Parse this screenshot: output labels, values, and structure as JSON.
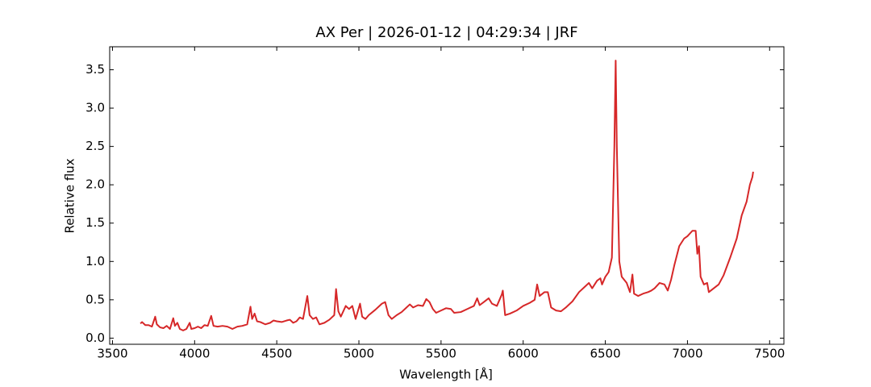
{
  "chart_data": {
    "type": "line",
    "title": "AX Per | 2026-01-12 | 04:29:34 | JRF",
    "x_label": "Wavelength [Å]",
    "y_label": "Relative flux",
    "color": "#d62728",
    "xlim": [
      3483,
      7587
    ],
    "ylim": [
      -0.08,
      3.8
    ],
    "xticks": [
      3500,
      4000,
      4500,
      5000,
      5500,
      6000,
      6500,
      7000,
      7500
    ],
    "yticks": [
      {
        "value": 0,
        "label": "0.0"
      },
      0.5,
      {
        "value": 1,
        "label": "1.0"
      },
      1.5,
      {
        "value": 2,
        "label": "2.0"
      },
      2.5,
      {
        "value": 3,
        "label": "3.0"
      },
      3.5
    ],
    "x": [
      3670,
      3680,
      3700,
      3720,
      3740,
      3760,
      3770,
      3790,
      3810,
      3830,
      3850,
      3870,
      3880,
      3895,
      3910,
      3930,
      3950,
      3970,
      3980,
      4000,
      4020,
      4040,
      4060,
      4080,
      4101,
      4115,
      4140,
      4170,
      4200,
      4230,
      4260,
      4290,
      4320,
      4340,
      4350,
      4365,
      4380,
      4400,
      4430,
      4460,
      4480,
      4500,
      4530,
      4560,
      4580,
      4600,
      4620,
      4640,
      4660,
      4686,
      4700,
      4720,
      4740,
      4760,
      4790,
      4820,
      4850,
      4861,
      4875,
      4890,
      4920,
      4940,
      4960,
      4980,
      5007,
      5020,
      5040,
      5060,
      5100,
      5140,
      5160,
      5180,
      5200,
      5230,
      5260,
      5290,
      5310,
      5330,
      5360,
      5390,
      5410,
      5430,
      5450,
      5470,
      5500,
      5530,
      5560,
      5580,
      5620,
      5660,
      5700,
      5720,
      5735,
      5760,
      5790,
      5810,
      5840,
      5870,
      5876,
      5890,
      5920,
      5960,
      6000,
      6040,
      6070,
      6085,
      6100,
      6130,
      6150,
      6170,
      6200,
      6230,
      6260,
      6300,
      6340,
      6380,
      6400,
      6420,
      6450,
      6470,
      6480,
      6500,
      6520,
      6540,
      6555,
      6563,
      6570,
      6585,
      6600,
      6630,
      6650,
      6665,
      6675,
      6700,
      6730,
      6760,
      6780,
      6800,
      6830,
      6860,
      6880,
      6900,
      6920,
      6950,
      6980,
      7000,
      7030,
      7050,
      7060,
      7070,
      7080,
      7100,
      7120,
      7130,
      7160,
      7190,
      7220,
      7260,
      7300,
      7330,
      7360,
      7380,
      7395,
      7400
    ],
    "values": [
      0.19,
      0.21,
      0.17,
      0.17,
      0.15,
      0.28,
      0.18,
      0.14,
      0.13,
      0.16,
      0.12,
      0.26,
      0.16,
      0.2,
      0.12,
      0.1,
      0.12,
      0.2,
      0.12,
      0.13,
      0.15,
      0.13,
      0.17,
      0.16,
      0.29,
      0.16,
      0.15,
      0.16,
      0.15,
      0.12,
      0.15,
      0.16,
      0.18,
      0.41,
      0.25,
      0.32,
      0.22,
      0.21,
      0.18,
      0.2,
      0.23,
      0.22,
      0.21,
      0.23,
      0.24,
      0.2,
      0.22,
      0.27,
      0.25,
      0.55,
      0.3,
      0.25,
      0.27,
      0.18,
      0.2,
      0.24,
      0.3,
      0.64,
      0.35,
      0.28,
      0.42,
      0.38,
      0.42,
      0.25,
      0.45,
      0.28,
      0.25,
      0.3,
      0.37,
      0.45,
      0.47,
      0.3,
      0.25,
      0.3,
      0.34,
      0.4,
      0.44,
      0.4,
      0.43,
      0.42,
      0.51,
      0.47,
      0.38,
      0.33,
      0.36,
      0.39,
      0.38,
      0.33,
      0.34,
      0.38,
      0.42,
      0.52,
      0.43,
      0.47,
      0.52,
      0.45,
      0.42,
      0.57,
      0.62,
      0.3,
      0.32,
      0.36,
      0.42,
      0.46,
      0.5,
      0.7,
      0.55,
      0.6,
      0.6,
      0.4,
      0.36,
      0.35,
      0.4,
      0.48,
      0.6,
      0.68,
      0.72,
      0.65,
      0.75,
      0.78,
      0.7,
      0.8,
      0.86,
      1.05,
      2.5,
      3.62,
      2.5,
      1.0,
      0.8,
      0.72,
      0.6,
      0.83,
      0.58,
      0.55,
      0.58,
      0.6,
      0.62,
      0.65,
      0.72,
      0.7,
      0.62,
      0.76,
      0.95,
      1.2,
      1.3,
      1.33,
      1.4,
      1.4,
      1.1,
      1.2,
      0.8,
      0.7,
      0.72,
      0.6,
      0.65,
      0.7,
      0.82,
      1.05,
      1.3,
      1.6,
      1.78,
      2.0,
      2.1,
      2.17
    ]
  }
}
